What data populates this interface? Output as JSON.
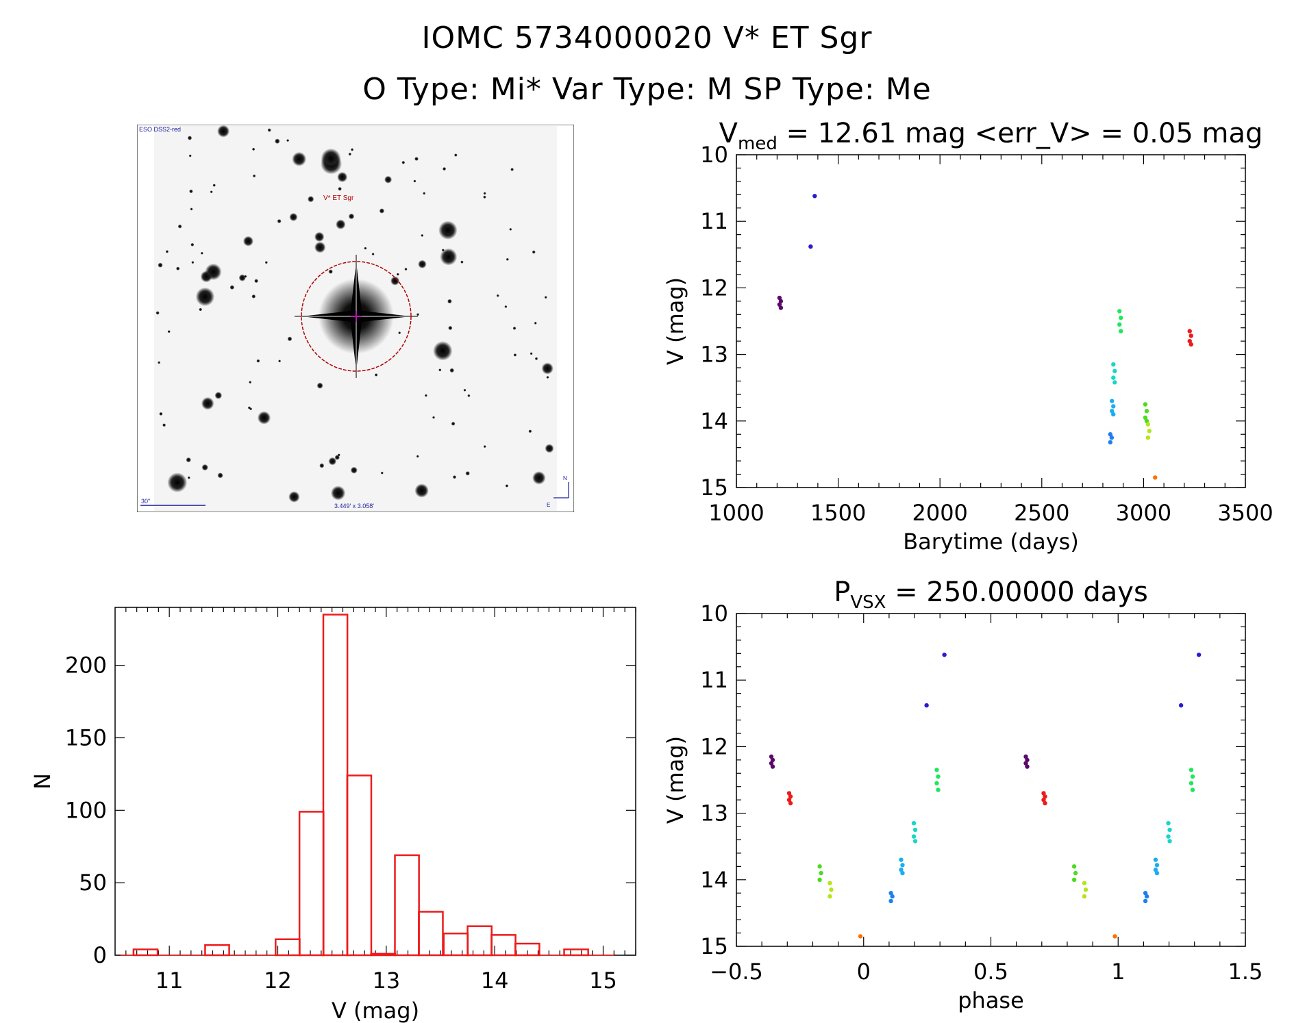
{
  "header": {
    "line1": "IOMC 5734000020   V* ET Sgr",
    "line2": "O Type: Mi*  Var Type: M  SP Type: Me"
  },
  "image_labels": {
    "survey": "ESO DSS2-red",
    "target": "V* ET Sgr",
    "scale": "30\"",
    "fov": "3.449' x 3.058'",
    "north": "N",
    "east": "E"
  },
  "chart_data": [
    {
      "type": "scatter",
      "title_main": "V",
      "title_sub": "med",
      "title_rest": " = 12.61 mag <err_V> = 0.05 mag",
      "xlabel": "Barytime (days)",
      "ylabel": "V (mag)",
      "xlim": [
        1000,
        3500
      ],
      "ylim": [
        15,
        10
      ],
      "xticks": [
        1000,
        1500,
        2000,
        2500,
        3000,
        3500
      ],
      "yticks": [
        10,
        11,
        12,
        13,
        14,
        15
      ],
      "groups": [
        {
          "x": 1215,
          "y": [
            12.15,
            12.2,
            12.25,
            12.3
          ],
          "color": "#5a0a6a"
        },
        {
          "x": 1368,
          "y": [
            11.38
          ],
          "color": "#2a1ad0"
        },
        {
          "x": 1388,
          "y": [
            10.62
          ],
          "color": "#2a1ad0"
        },
        {
          "x": 2840,
          "y": [
            14.2,
            14.25,
            14.32
          ],
          "color": "#1e7ff0"
        },
        {
          "x": 2848,
          "y": [
            13.7,
            13.78,
            13.85,
            13.9
          ],
          "color": "#1aaef0"
        },
        {
          "x": 2855,
          "y": [
            13.15,
            13.25,
            13.35,
            13.42
          ],
          "color": "#18d6c8"
        },
        {
          "x": 2885,
          "y": [
            12.35,
            12.45,
            12.55,
            12.65
          ],
          "color": "#1ee85a"
        },
        {
          "x": 3012,
          "y": [
            13.75,
            13.85,
            13.95,
            14.0
          ],
          "color": "#4cdc20"
        },
        {
          "x": 3025,
          "y": [
            14.05,
            14.15,
            14.25
          ],
          "color": "#b6e41a"
        },
        {
          "x": 3060,
          "y": [
            14.85
          ],
          "color": "#ff7000"
        },
        {
          "x": 3230,
          "y": [
            12.65,
            12.72,
            12.8,
            12.85
          ],
          "color": "#ee1a1a"
        }
      ]
    },
    {
      "type": "bar",
      "title": "",
      "xlabel": "V (mag)",
      "ylabel": "N",
      "xlim": [
        10.5,
        15.3
      ],
      "ylim": [
        0,
        240
      ],
      "xticks": [
        11,
        12,
        13,
        14,
        15
      ],
      "yticks": [
        0,
        50,
        100,
        150,
        200
      ],
      "bin_width": 0.222,
      "bins": [
        {
          "x0": 10.67,
          "n": 4
        },
        {
          "x0": 11.33,
          "n": 7
        },
        {
          "x0": 11.98,
          "n": 11
        },
        {
          "x0": 12.2,
          "n": 99
        },
        {
          "x0": 12.42,
          "n": 235
        },
        {
          "x0": 12.64,
          "n": 124
        },
        {
          "x0": 12.86,
          "n": 1
        },
        {
          "x0": 13.08,
          "n": 69
        },
        {
          "x0": 13.3,
          "n": 30
        },
        {
          "x0": 13.53,
          "n": 15
        },
        {
          "x0": 13.75,
          "n": 20
        },
        {
          "x0": 13.97,
          "n": 14
        },
        {
          "x0": 14.19,
          "n": 8
        },
        {
          "x0": 14.64,
          "n": 4
        }
      ]
    },
    {
      "type": "scatter",
      "title_main": "P",
      "title_sub": "VSX",
      "title_rest": " = 250.00000 days",
      "xlabel": "phase",
      "ylabel": "V (mag)",
      "xlim": [
        -0.5,
        1.5
      ],
      "ylim": [
        15,
        10
      ],
      "xticks": [
        -0.5,
        0.0,
        0.5,
        1.0,
        1.5
      ],
      "yticks": [
        10,
        11,
        12,
        13,
        14,
        15
      ],
      "groups": [
        {
          "x": -0.36,
          "y": [
            12.15,
            12.2,
            12.25,
            12.3
          ],
          "color": "#5a0a6a"
        },
        {
          "x": -0.29,
          "y": [
            12.7,
            12.75,
            12.8,
            12.85
          ],
          "color": "#ee1a1a"
        },
        {
          "x": -0.17,
          "y": [
            13.8,
            13.9,
            14.0
          ],
          "color": "#4cdc20"
        },
        {
          "x": -0.13,
          "y": [
            14.05,
            14.15,
            14.25
          ],
          "color": "#b6e41a"
        },
        {
          "x": -0.01,
          "y": [
            14.85
          ],
          "color": "#ff7000"
        },
        {
          "x": 0.11,
          "y": [
            14.2,
            14.25,
            14.32
          ],
          "color": "#1e7ff0"
        },
        {
          "x": 0.15,
          "y": [
            13.7,
            13.78,
            13.85,
            13.9
          ],
          "color": "#1aaef0"
        },
        {
          "x": 0.2,
          "y": [
            13.15,
            13.25,
            13.35,
            13.42
          ],
          "color": "#18d6c8"
        },
        {
          "x": 0.25,
          "y": [
            11.38
          ],
          "color": "#2a1ad0"
        },
        {
          "x": 0.29,
          "y": [
            12.35,
            12.45,
            12.55,
            12.65
          ],
          "color": "#1ee85a"
        },
        {
          "x": 0.32,
          "y": [
            10.62
          ],
          "color": "#2a1ad0"
        },
        {
          "x": 0.64,
          "y": [
            12.15,
            12.2,
            12.25,
            12.3
          ],
          "color": "#5a0a6a"
        },
        {
          "x": 0.71,
          "y": [
            12.7,
            12.75,
            12.8,
            12.85
          ],
          "color": "#ee1a1a"
        },
        {
          "x": 0.83,
          "y": [
            13.8,
            13.9,
            14.0
          ],
          "color": "#4cdc20"
        },
        {
          "x": 0.87,
          "y": [
            14.05,
            14.15,
            14.25
          ],
          "color": "#b6e41a"
        },
        {
          "x": 0.99,
          "y": [
            14.85
          ],
          "color": "#ff7000"
        },
        {
          "x": 1.11,
          "y": [
            14.2,
            14.25,
            14.32
          ],
          "color": "#1e7ff0"
        },
        {
          "x": 1.15,
          "y": [
            13.7,
            13.78,
            13.85,
            13.9
          ],
          "color": "#1aaef0"
        },
        {
          "x": 1.2,
          "y": [
            13.15,
            13.25,
            13.35,
            13.42
          ],
          "color": "#18d6c8"
        },
        {
          "x": 1.25,
          "y": [
            11.38
          ],
          "color": "#2a1ad0"
        },
        {
          "x": 1.29,
          "y": [
            12.35,
            12.45,
            12.55,
            12.65
          ],
          "color": "#1ee85a"
        },
        {
          "x": 1.32,
          "y": [
            10.62
          ],
          "color": "#2a1ad0"
        }
      ]
    }
  ]
}
